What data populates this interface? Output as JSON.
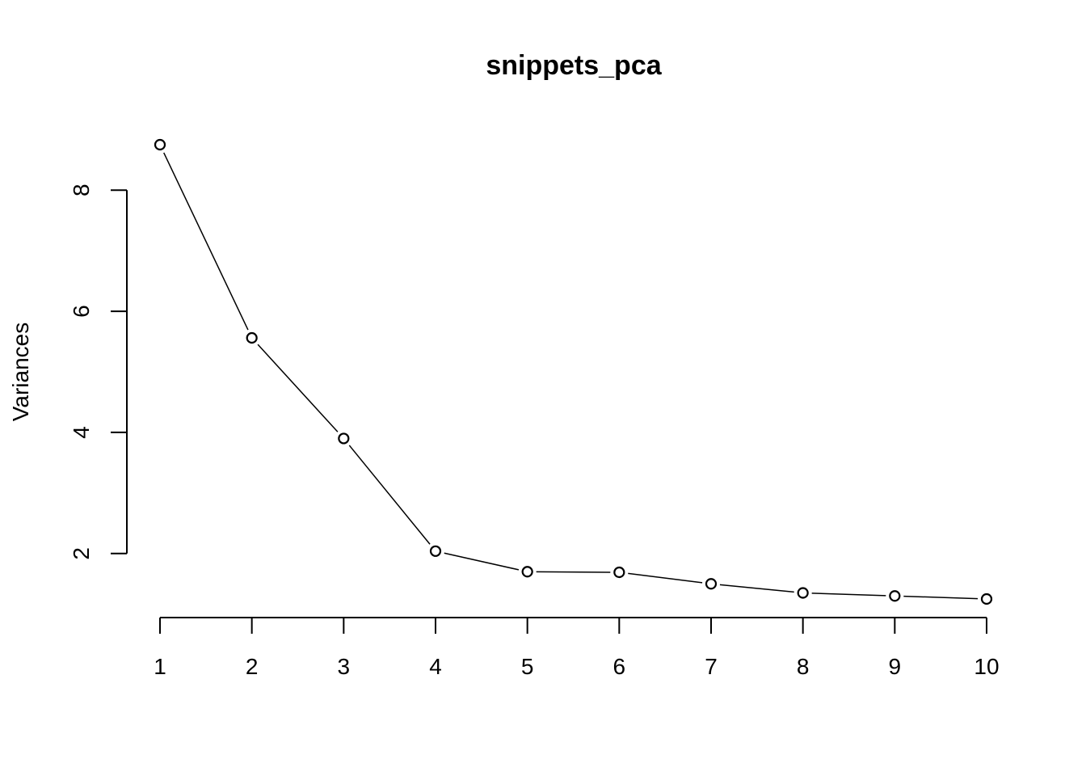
{
  "chart_data": {
    "type": "line",
    "title": "snippets_pca",
    "xlabel": "",
    "ylabel": "Variances",
    "x": [
      1,
      2,
      3,
      4,
      5,
      6,
      7,
      8,
      9,
      10
    ],
    "values": [
      8.75,
      5.56,
      3.9,
      2.04,
      1.7,
      1.69,
      1.5,
      1.35,
      1.3,
      1.25
    ],
    "x_ticks": [
      "1",
      "2",
      "3",
      "4",
      "5",
      "6",
      "7",
      "8",
      "9",
      "10"
    ],
    "y_ticks": [
      "2",
      "4",
      "6",
      "8"
    ],
    "xlim": [
      1,
      10
    ],
    "ylim": [
      1.25,
      8.75
    ],
    "y_tick_range": [
      2,
      8
    ],
    "grid": false,
    "point_style": "open-circle",
    "colors": {
      "line": "#000000",
      "background": "#ffffff"
    }
  }
}
